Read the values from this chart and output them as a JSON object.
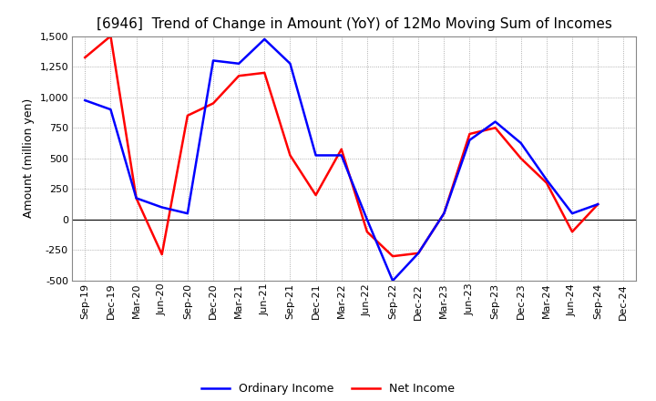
{
  "title": "[6946]  Trend of Change in Amount (YoY) of 12Mo Moving Sum of Incomes",
  "ylabel": "Amount (million yen)",
  "x_labels": [
    "Sep-19",
    "Dec-19",
    "Mar-20",
    "Jun-20",
    "Sep-20",
    "Dec-20",
    "Mar-21",
    "Jun-21",
    "Sep-21",
    "Dec-21",
    "Mar-22",
    "Jun-22",
    "Sep-22",
    "Dec-22",
    "Mar-23",
    "Jun-23",
    "Sep-23",
    "Dec-23",
    "Mar-24",
    "Jun-24",
    "Sep-24",
    "Dec-24"
  ],
  "ordinary_income": [
    975,
    900,
    175,
    100,
    50,
    1300,
    1275,
    1475,
    1275,
    525,
    525,
    0,
    -500,
    -275,
    50,
    650,
    800,
    625,
    325,
    50,
    125,
    null
  ],
  "net_income": [
    1325,
    1500,
    175,
    -285,
    850,
    950,
    1175,
    1200,
    525,
    200,
    575,
    -100,
    -300,
    -275,
    50,
    700,
    750,
    500,
    300,
    -100,
    125,
    null
  ],
  "ordinary_color": "#0000ff",
  "net_color": "#ff0000",
  "ylim": [
    -500,
    1500
  ],
  "yticks": [
    -500,
    -250,
    0,
    250,
    500,
    750,
    1000,
    1250,
    1500
  ],
  "background_color": "#ffffff",
  "grid_color": "#999999",
  "title_fontsize": 11,
  "legend_fontsize": 9,
  "ylabel_fontsize": 9,
  "tick_fontsize": 8
}
